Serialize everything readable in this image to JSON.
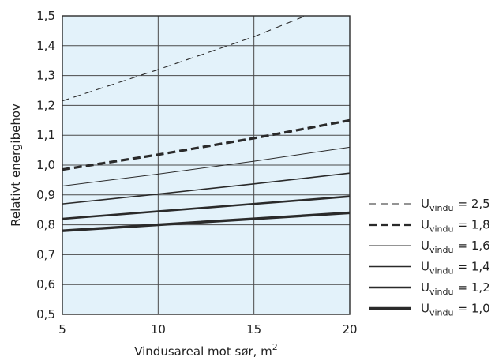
{
  "chart_data": {
    "type": "line",
    "xlabel": "Vindusareal mot sør, m",
    "xlabel_sup": "2",
    "ylabel": "Relativt energibehov",
    "xlim": [
      5,
      20
    ],
    "ylim": [
      0.5,
      1.5
    ],
    "xticks": [
      5,
      10,
      15,
      20
    ],
    "xtick_labels": [
      "5",
      "10",
      "15",
      "20"
    ],
    "yticks": [
      0.5,
      0.6,
      0.7,
      0.8,
      0.9,
      1.0,
      1.1,
      1.2,
      1.3,
      1.4,
      1.5
    ],
    "ytick_labels": [
      "0,5",
      "0,6",
      "0,7",
      "0,8",
      "0,9",
      "1,0",
      "1,1",
      "1,2",
      "1,3",
      "1,4",
      "1,5"
    ],
    "grid": true,
    "plot_background": "#e3f2fa",
    "line_color": "#2a2a2a",
    "legend_position": "right",
    "series": [
      {
        "label_main": "U",
        "label_sub": "vindu",
        "label_value": "= 2,5",
        "style": "thin-dashed",
        "x": [
          5,
          10,
          15,
          20
        ],
        "y": [
          1.215,
          1.32,
          1.43,
          1.56
        ]
      },
      {
        "label_main": "U",
        "label_sub": "vindu",
        "label_value": "= 1,8",
        "style": "thick-dashed",
        "x": [
          5,
          10,
          15,
          20
        ],
        "y": [
          0.985,
          1.035,
          1.09,
          1.15
        ]
      },
      {
        "label_main": "U",
        "label_sub": "vindu",
        "label_value": "= 1,6",
        "style": "thin",
        "x": [
          5,
          10,
          15,
          20
        ],
        "y": [
          0.93,
          0.97,
          1.013,
          1.06
        ]
      },
      {
        "label_main": "U",
        "label_sub": "vindu",
        "label_value": "= 1,4",
        "style": "medium",
        "x": [
          5,
          10,
          15,
          20
        ],
        "y": [
          0.87,
          0.903,
          0.937,
          0.973
        ]
      },
      {
        "label_main": "U",
        "label_sub": "vindu",
        "label_value": "= 1,2",
        "style": "thick",
        "x": [
          5,
          10,
          15,
          20
        ],
        "y": [
          0.82,
          0.845,
          0.87,
          0.895
        ]
      },
      {
        "label_main": "U",
        "label_sub": "vindu",
        "label_value": "= 1,0",
        "style": "thickest",
        "x": [
          5,
          10,
          15,
          20
        ],
        "y": [
          0.78,
          0.8,
          0.82,
          0.84
        ]
      }
    ]
  }
}
